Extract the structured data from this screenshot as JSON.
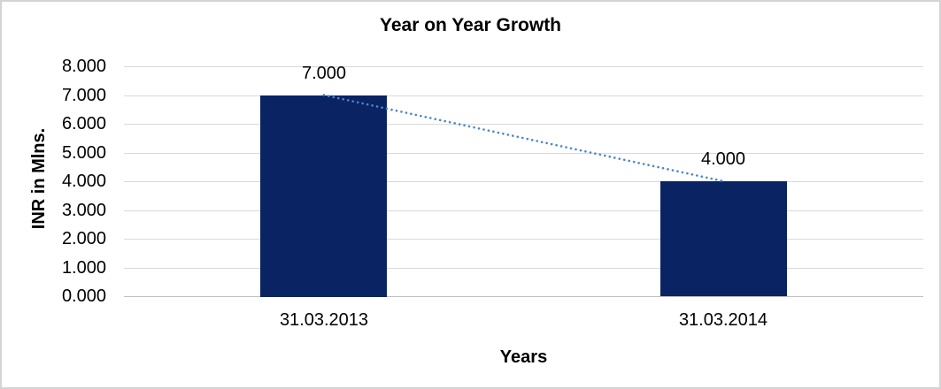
{
  "window": {
    "background": "#FFFFFF",
    "border_color": "#D4D4D4"
  },
  "chart_data": {
    "type": "bar",
    "title": "Year on Year Growth",
    "categories": [
      "31.03.2013",
      "31.03.2014"
    ],
    "values": [
      7,
      4
    ],
    "data_labels": [
      "7.000",
      "4.000"
    ],
    "xlabel": "Years",
    "ylabel": "INR in Mlns.",
    "ylim": [
      0,
      8
    ],
    "ytick_step": 1,
    "ytick_labels": [
      "0.000",
      "1.000",
      "2.000",
      "3.000",
      "4.000",
      "5.000",
      "6.000",
      "7.000",
      "8.000"
    ],
    "grid": true,
    "legend": "none",
    "bar_color": "#0A2363",
    "gridline_color": "#D9D9D9",
    "axis_line_color": "#C0C0C0",
    "text_color": "#000000",
    "trendline": {
      "style": "dotted",
      "color": "#4B87C6",
      "points": [
        7,
        4
      ]
    }
  }
}
